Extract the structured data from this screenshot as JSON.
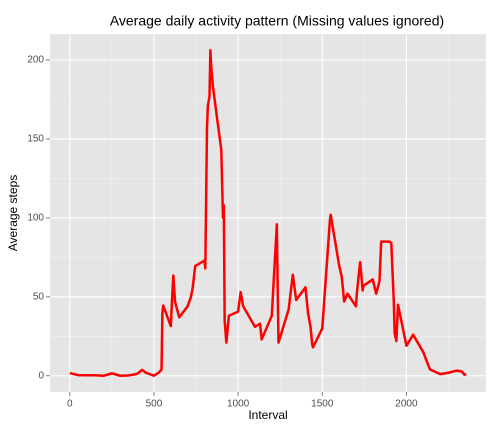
{
  "chart_data": {
    "type": "line",
    "title": "Average daily activity pattern (Missing values ignored)",
    "x_label": "Interval",
    "y_label": "Average steps",
    "x": [
      0,
      50,
      100,
      150,
      200,
      250,
      300,
      350,
      400,
      430,
      450,
      500,
      530,
      545,
      550,
      555,
      600,
      610,
      615,
      625,
      650,
      700,
      720,
      730,
      745,
      800,
      805,
      815,
      820,
      830,
      835,
      840,
      850,
      900,
      910,
      915,
      920,
      930,
      945,
      1000,
      1015,
      1030,
      1100,
      1130,
      1140,
      1200,
      1230,
      1235,
      1240,
      1300,
      1325,
      1345,
      1400,
      1415,
      1430,
      1440,
      1445,
      1500,
      1545,
      1550,
      1600,
      1615,
      1620,
      1630,
      1650,
      1700,
      1705,
      1725,
      1740,
      1745,
      1800,
      1820,
      1840,
      1850,
      1900,
      1910,
      1925,
      1930,
      1940,
      1950,
      2000,
      2040,
      2100,
      2125,
      2140,
      2200,
      2250,
      2300,
      2330,
      2345,
      2355
    ],
    "series": [
      {
        "name": "Average steps",
        "color": "#ff0000",
        "values": [
          1.7,
          0.4,
          0.3,
          0.3,
          0,
          1.5,
          0,
          0.2,
          1.2,
          3.7,
          2,
          0,
          2.1,
          4,
          39.5,
          44.5,
          31.5,
          53.8,
          63.5,
          47,
          37,
          44,
          50,
          55.7,
          69.5,
          73,
          68,
          157,
          171,
          177,
          206.2,
          195.9,
          183.4,
          143,
          100,
          108,
          35,
          21,
          38,
          40.6,
          53,
          44,
          31,
          33,
          23,
          38,
          96,
          55,
          21,
          42,
          64,
          48,
          56,
          40,
          31,
          20,
          18,
          30,
          98,
          102,
          70,
          63,
          58,
          47,
          52,
          44,
          52,
          72,
          54,
          57,
          61,
          52,
          60,
          85,
          85,
          84,
          47,
          27,
          22,
          45,
          19,
          26,
          15,
          8,
          4,
          1,
          1.9,
          3.3,
          2.6,
          0.6,
          1.1
        ]
      }
    ],
    "xlim": [
      -117.75,
      2472.75
    ],
    "xticks": [
      0,
      500,
      1000,
      1500,
      2000
    ],
    "ylim": [
      -10.3,
      216.5
    ],
    "yticks": [
      0,
      50,
      100,
      150,
      200
    ],
    "x_minor_breaks": [
      250,
      750,
      1250,
      1750,
      2250
    ],
    "y_minor_breaks": [
      25,
      75,
      125,
      175
    ],
    "grid": true
  }
}
